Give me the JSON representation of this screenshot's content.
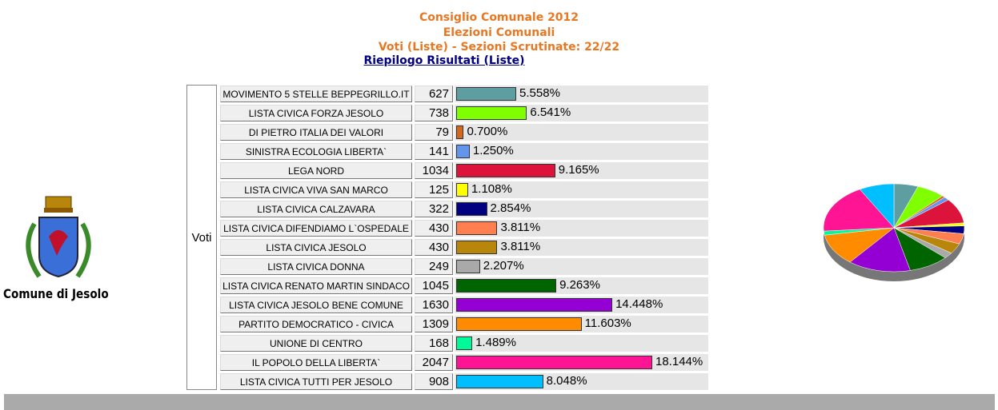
{
  "header": {
    "title": "Consiglio Comunale 2012",
    "subtitle": "Elezioni Comunali",
    "status": "Voti (Liste) - Sezioni Scrutinate: 22/22",
    "link": "Riepilogo Risultati (Liste)"
  },
  "logo": {
    "label": "Comune di Jesolo"
  },
  "table": {
    "row_header": "Voti",
    "rows": [
      {
        "name": "MOVIMENTO 5 STELLE BEPPEGRILLO.IT",
        "votes": 627,
        "percent": "5.558%",
        "color": "#5f9ea0"
      },
      {
        "name": "LISTA CIVICA FORZA JESOLO",
        "votes": 738,
        "percent": "6.541%",
        "color": "#7fff00"
      },
      {
        "name": "DI PIETRO ITALIA DEI VALORI",
        "votes": 79,
        "percent": "0.700%",
        "color": "#d2691e"
      },
      {
        "name": "SINISTRA ECOLOGIA LIBERTA`",
        "votes": 141,
        "percent": "1.250%",
        "color": "#6495ed"
      },
      {
        "name": "LEGA NORD",
        "votes": 1034,
        "percent": "9.165%",
        "color": "#dc143c"
      },
      {
        "name": "LISTA CIVICA VIVA SAN MARCO",
        "votes": 125,
        "percent": "1.108%",
        "color": "#ffff00"
      },
      {
        "name": "LISTA CIVICA CALZAVARA",
        "votes": 322,
        "percent": "2.854%",
        "color": "#000080"
      },
      {
        "name": "LISTA CIVICA DIFENDIAMO L`OSPEDALE",
        "votes": 430,
        "percent": "3.811%",
        "color": "#ff7f50"
      },
      {
        "name": "LISTA CIVICA JESOLO",
        "votes": 430,
        "percent": "3.811%",
        "color": "#b8860b"
      },
      {
        "name": "LISTA CIVICA DONNA",
        "votes": 249,
        "percent": "2.207%",
        "color": "#a9a9a9"
      },
      {
        "name": "LISTA CIVICA RENATO MARTIN SINDACO",
        "votes": 1045,
        "percent": "9.263%",
        "color": "#006400"
      },
      {
        "name": "LISTA CIVICA JESOLO BENE COMUNE",
        "votes": 1630,
        "percent": "14.448%",
        "color": "#9400d3"
      },
      {
        "name": "PARTITO DEMOCRATICO - CIVICA",
        "votes": 1309,
        "percent": "11.603%",
        "color": "#ff8c00"
      },
      {
        "name": "UNIONE DI CENTRO",
        "votes": 168,
        "percent": "1.489%",
        "color": "#00fa9a"
      },
      {
        "name": "IL POPOLO DELLA LIBERTA`",
        "votes": 2047,
        "percent": "18.144%",
        "color": "#ff1493"
      },
      {
        "name": "LISTA CIVICA TUTTI PER JESOLO",
        "votes": 908,
        "percent": "8.048%",
        "color": "#00bfff"
      }
    ]
  }
}
